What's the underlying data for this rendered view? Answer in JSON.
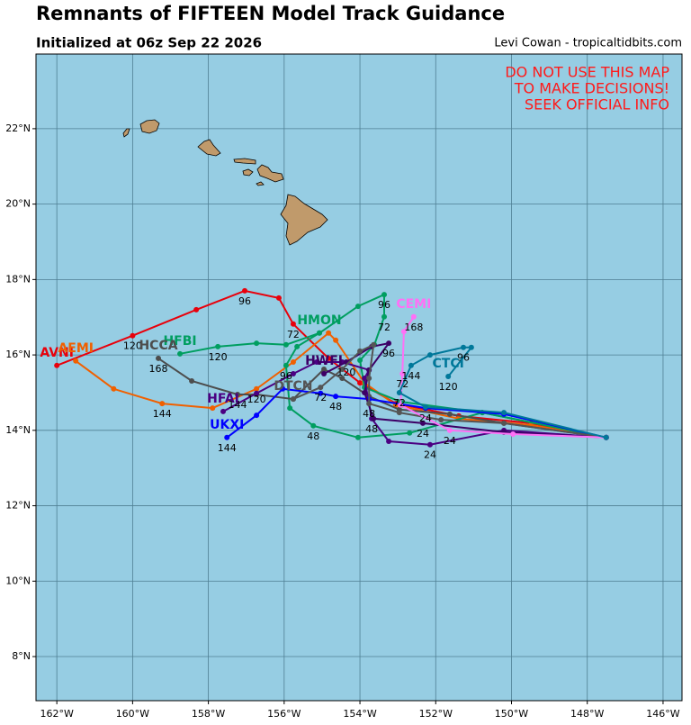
{
  "header": {
    "title": "Remnants of FIFTEEN Model Track Guidance",
    "subtitle": "Initialized at 06z Sep 22 2026",
    "credit": "Levi Cowan - tropicaltidbits.com"
  },
  "warning": [
    "DO NOT USE THIS MAP",
    "TO MAKE DECISIONS!",
    "SEEK OFFICIAL INFO"
  ],
  "chart_data": {
    "type": "track-map",
    "xlim": [
      -162.55,
      -145.5
    ],
    "ylim": [
      6.83,
      23.98
    ],
    "grid": true,
    "xticks": [
      {
        "value": -162,
        "label": "162°W"
      },
      {
        "value": -160,
        "label": "160°W"
      },
      {
        "value": -158,
        "label": "158°W"
      },
      {
        "value": -156,
        "label": "156°W"
      },
      {
        "value": -154,
        "label": "154°W"
      },
      {
        "value": -152,
        "label": "152°W"
      },
      {
        "value": -150,
        "label": "150°W"
      },
      {
        "value": -148,
        "label": "148°W"
      },
      {
        "value": -146,
        "label": "146°W"
      }
    ],
    "yticks": [
      {
        "value": 8,
        "label": "8°N"
      },
      {
        "value": 10,
        "label": "10°N"
      },
      {
        "value": 12,
        "label": "12°N"
      },
      {
        "value": 14,
        "label": "14°N"
      },
      {
        "value": 16,
        "label": "16°N"
      },
      {
        "value": 18,
        "label": "18°N"
      },
      {
        "value": 20,
        "label": "20°N"
      },
      {
        "value": 22,
        "label": "22°N"
      }
    ],
    "series": [
      {
        "name": "AVNI",
        "color": "#e8000b",
        "x": [
          -147.5,
          -149.49,
          -151.39,
          -153.05,
          -154.0,
          -154.83,
          -155.76,
          -156.14,
          -157.04,
          -158.32,
          -160.0,
          -162.0
        ],
        "y": [
          13.81,
          14.19,
          14.38,
          14.71,
          15.26,
          15.91,
          16.82,
          17.51,
          17.7,
          17.2,
          16.51,
          15.72
        ],
        "hour_labels": [
          null,
          null,
          null,
          null,
          null,
          null,
          "72",
          null,
          "96",
          null,
          "120",
          null
        ]
      },
      {
        "name": "AEMI",
        "color": "#f06000",
        "x": [
          -147.5,
          -149.49,
          -151.39,
          -153.05,
          -153.88,
          -154.64,
          -154.83,
          -155.76,
          -156.73,
          -157.89,
          -159.22,
          -160.5,
          -161.5
        ],
        "y": [
          13.81,
          14.14,
          14.31,
          14.67,
          15.26,
          16.39,
          16.58,
          15.81,
          15.1,
          14.59,
          14.71,
          15.1,
          15.84
        ],
        "hour_labels": [
          null,
          null,
          null,
          null,
          null,
          null,
          null,
          null,
          "120",
          null,
          "144",
          null,
          null
        ]
      },
      {
        "name": "HFBI",
        "color": "#009e60",
        "x": [
          -147.5,
          -150.77,
          -152.93,
          -153.88,
          -154.0,
          -153.62,
          -153.36,
          -153.36,
          -154.05,
          -155.07,
          -155.95,
          -156.73,
          -157.75,
          -158.75
        ],
        "y": [
          13.81,
          14.47,
          14.76,
          15.14,
          15.86,
          16.27,
          17.01,
          17.6,
          17.29,
          16.58,
          16.27,
          16.31,
          16.22,
          16.03
        ],
        "hour_labels": [
          null,
          null,
          null,
          null,
          null,
          null,
          "72",
          "96",
          null,
          null,
          null,
          null,
          "120",
          null
        ]
      },
      {
        "name": "HMON",
        "color": "#009e60",
        "x": [
          -147.5,
          -150.77,
          -152.69,
          -154.05,
          -155.23,
          -155.85,
          -155.95,
          -155.66,
          -155.07
        ],
        "y": [
          13.81,
          14.47,
          13.93,
          13.81,
          14.12,
          14.59,
          15.72,
          16.22,
          16.58
        ],
        "hour_labels": [
          null,
          null,
          null,
          null,
          "48",
          null,
          "96",
          null,
          null
        ]
      },
      {
        "name": "HCCA",
        "color": "#4d4d4d",
        "x": [
          -147.5,
          -150.2,
          -151.63,
          -152.96,
          -153.76,
          -154.47,
          -154.95,
          -155.76,
          -156.73,
          -157.23,
          -158.44,
          -159.32
        ],
        "y": [
          13.81,
          14.19,
          14.43,
          14.55,
          14.9,
          15.38,
          15.62,
          14.83,
          14.95,
          14.95,
          15.31,
          15.91
        ],
        "hour_labels": [
          null,
          null,
          null,
          null,
          null,
          null,
          null,
          null,
          null,
          "144",
          null,
          "168"
        ]
      },
      {
        "name": "HFAI",
        "color": "#4b0082",
        "x": [
          -147.5,
          -150.2,
          -152.15,
          -153.24,
          -153.69,
          -153.88,
          -153.76,
          -154.47,
          -155.14,
          -155.76,
          -156.73,
          -157.61
        ],
        "y": [
          13.81,
          14.0,
          13.62,
          13.71,
          14.31,
          15.38,
          15.6,
          15.81,
          15.81,
          15.5,
          14.98,
          14.5
        ],
        "hour_labels": [
          null,
          null,
          "24",
          null,
          "48",
          null,
          null,
          null,
          null,
          null,
          null,
          null
        ]
      },
      {
        "name": "UKXI",
        "color": "#0000ff",
        "x": [
          -147.5,
          -150.2,
          -152.27,
          -153.76,
          -154.64,
          -155.04,
          -156.04,
          -156.73,
          -157.51
        ],
        "y": [
          13.81,
          14.43,
          14.59,
          14.83,
          14.9,
          14.98,
          15.1,
          14.4,
          13.81
        ],
        "hour_labels": [
          null,
          null,
          "24",
          null,
          "48",
          null,
          null,
          null,
          "144"
        ]
      },
      {
        "name": "HWFI",
        "color": "#3d0066",
        "x": [
          -147.5,
          -150.2,
          -152.34,
          -153.64,
          -153.88,
          -153.76,
          -153.24,
          -153.69,
          -154.36,
          -154.95
        ],
        "y": [
          13.81,
          13.95,
          14.19,
          14.31,
          15.0,
          15.6,
          16.31,
          16.22,
          15.81,
          15.5
        ],
        "hour_labels": [
          null,
          null,
          "24",
          null,
          null,
          null,
          "96",
          null,
          "120",
          null
        ]
      },
      {
        "name": "DTCN",
        "color": "#555555",
        "x": [
          -147.5,
          -150.2,
          -151.86,
          -152.96,
          -153.76,
          -153.76,
          -153.64,
          -154.0,
          -154.47,
          -155.04,
          -155.76
        ],
        "y": [
          13.81,
          14.19,
          14.28,
          14.47,
          14.71,
          15.38,
          16.27,
          16.1,
          15.62,
          15.14,
          14.83
        ],
        "hour_labels": [
          null,
          null,
          null,
          null,
          "48",
          null,
          null,
          null,
          null,
          "72",
          null
        ]
      },
      {
        "name": "CEMI",
        "color": "#ff70f6",
        "x": [
          -147.5,
          -149.96,
          -151.63,
          -152.93,
          -152.88,
          -152.84,
          -152.58
        ],
        "y": [
          13.81,
          13.9,
          14.0,
          14.67,
          15.5,
          16.62,
          17.01
        ],
        "hour_labels": [
          null,
          null,
          "24",
          null,
          "72",
          null,
          "168"
        ]
      },
      {
        "name": "CTCI",
        "color": "#00789a",
        "x": [
          -147.5,
          -150.2,
          -152.27,
          -152.96,
          -152.65,
          -152.15,
          -151.27,
          -151.06,
          -151.67
        ],
        "y": [
          13.81,
          14.47,
          14.62,
          15.0,
          15.72,
          16.0,
          16.2,
          16.2,
          15.43
        ],
        "hour_labels": [
          null,
          null,
          null,
          "72",
          "144",
          null,
          "96",
          null,
          "120"
        ]
      }
    ]
  }
}
